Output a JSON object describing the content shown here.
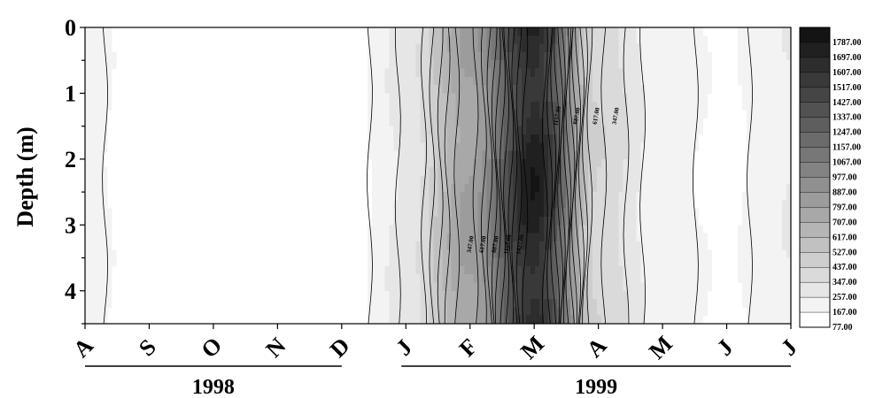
{
  "chart_data": {
    "type": "heatmap",
    "subtype": "filled-contour",
    "ylabel": "Depth (m)",
    "ylim": [
      0,
      4.5
    ],
    "y_ticks": [
      0,
      1,
      2,
      3,
      4
    ],
    "y_inverted": true,
    "x_ticks": [
      "A",
      "S",
      "O",
      "N",
      "D",
      "J",
      "F",
      "M",
      "A",
      "M",
      "J",
      "J"
    ],
    "x_groups": [
      {
        "label": "1998",
        "from_tick": 0,
        "to_tick": 4
      },
      {
        "label": "1999",
        "from_tick": 5,
        "to_tick": 11
      }
    ],
    "legend_levels": [
      1787.0,
      1697.0,
      1607.0,
      1517.0,
      1427.0,
      1337.0,
      1247.0,
      1157.0,
      1067.0,
      977.0,
      887.0,
      797.0,
      707.0,
      617.0,
      527.0,
      437.0,
      347.0,
      257.0,
      167.0,
      77.0
    ],
    "legend_labels": [
      "1787.00",
      "1697.00",
      "1607.00",
      "1517.00",
      "1427.00",
      "1337.00",
      "1247.00",
      "1157.00",
      "1067.00",
      "977.00",
      "887.00",
      "797.00",
      "707.00",
      "617.00",
      "527.00",
      "437.00",
      "347.00",
      "257.00",
      "167.00",
      "77.00"
    ],
    "contour_labels": [
      "1157.00",
      "887.00",
      "617.00",
      "347.00",
      "347.00",
      "617.00",
      "887.00",
      "1157.00",
      "1427.00"
    ],
    "month_values_approx": [
      200,
      100,
      100,
      100,
      100,
      280,
      800,
      1700,
      420,
      200,
      150,
      250
    ],
    "depth_profile_note": "",
    "color_scale": {
      "low": "#ffffff",
      "high": "#000000"
    },
    "grid": false,
    "legend_position": "right"
  }
}
